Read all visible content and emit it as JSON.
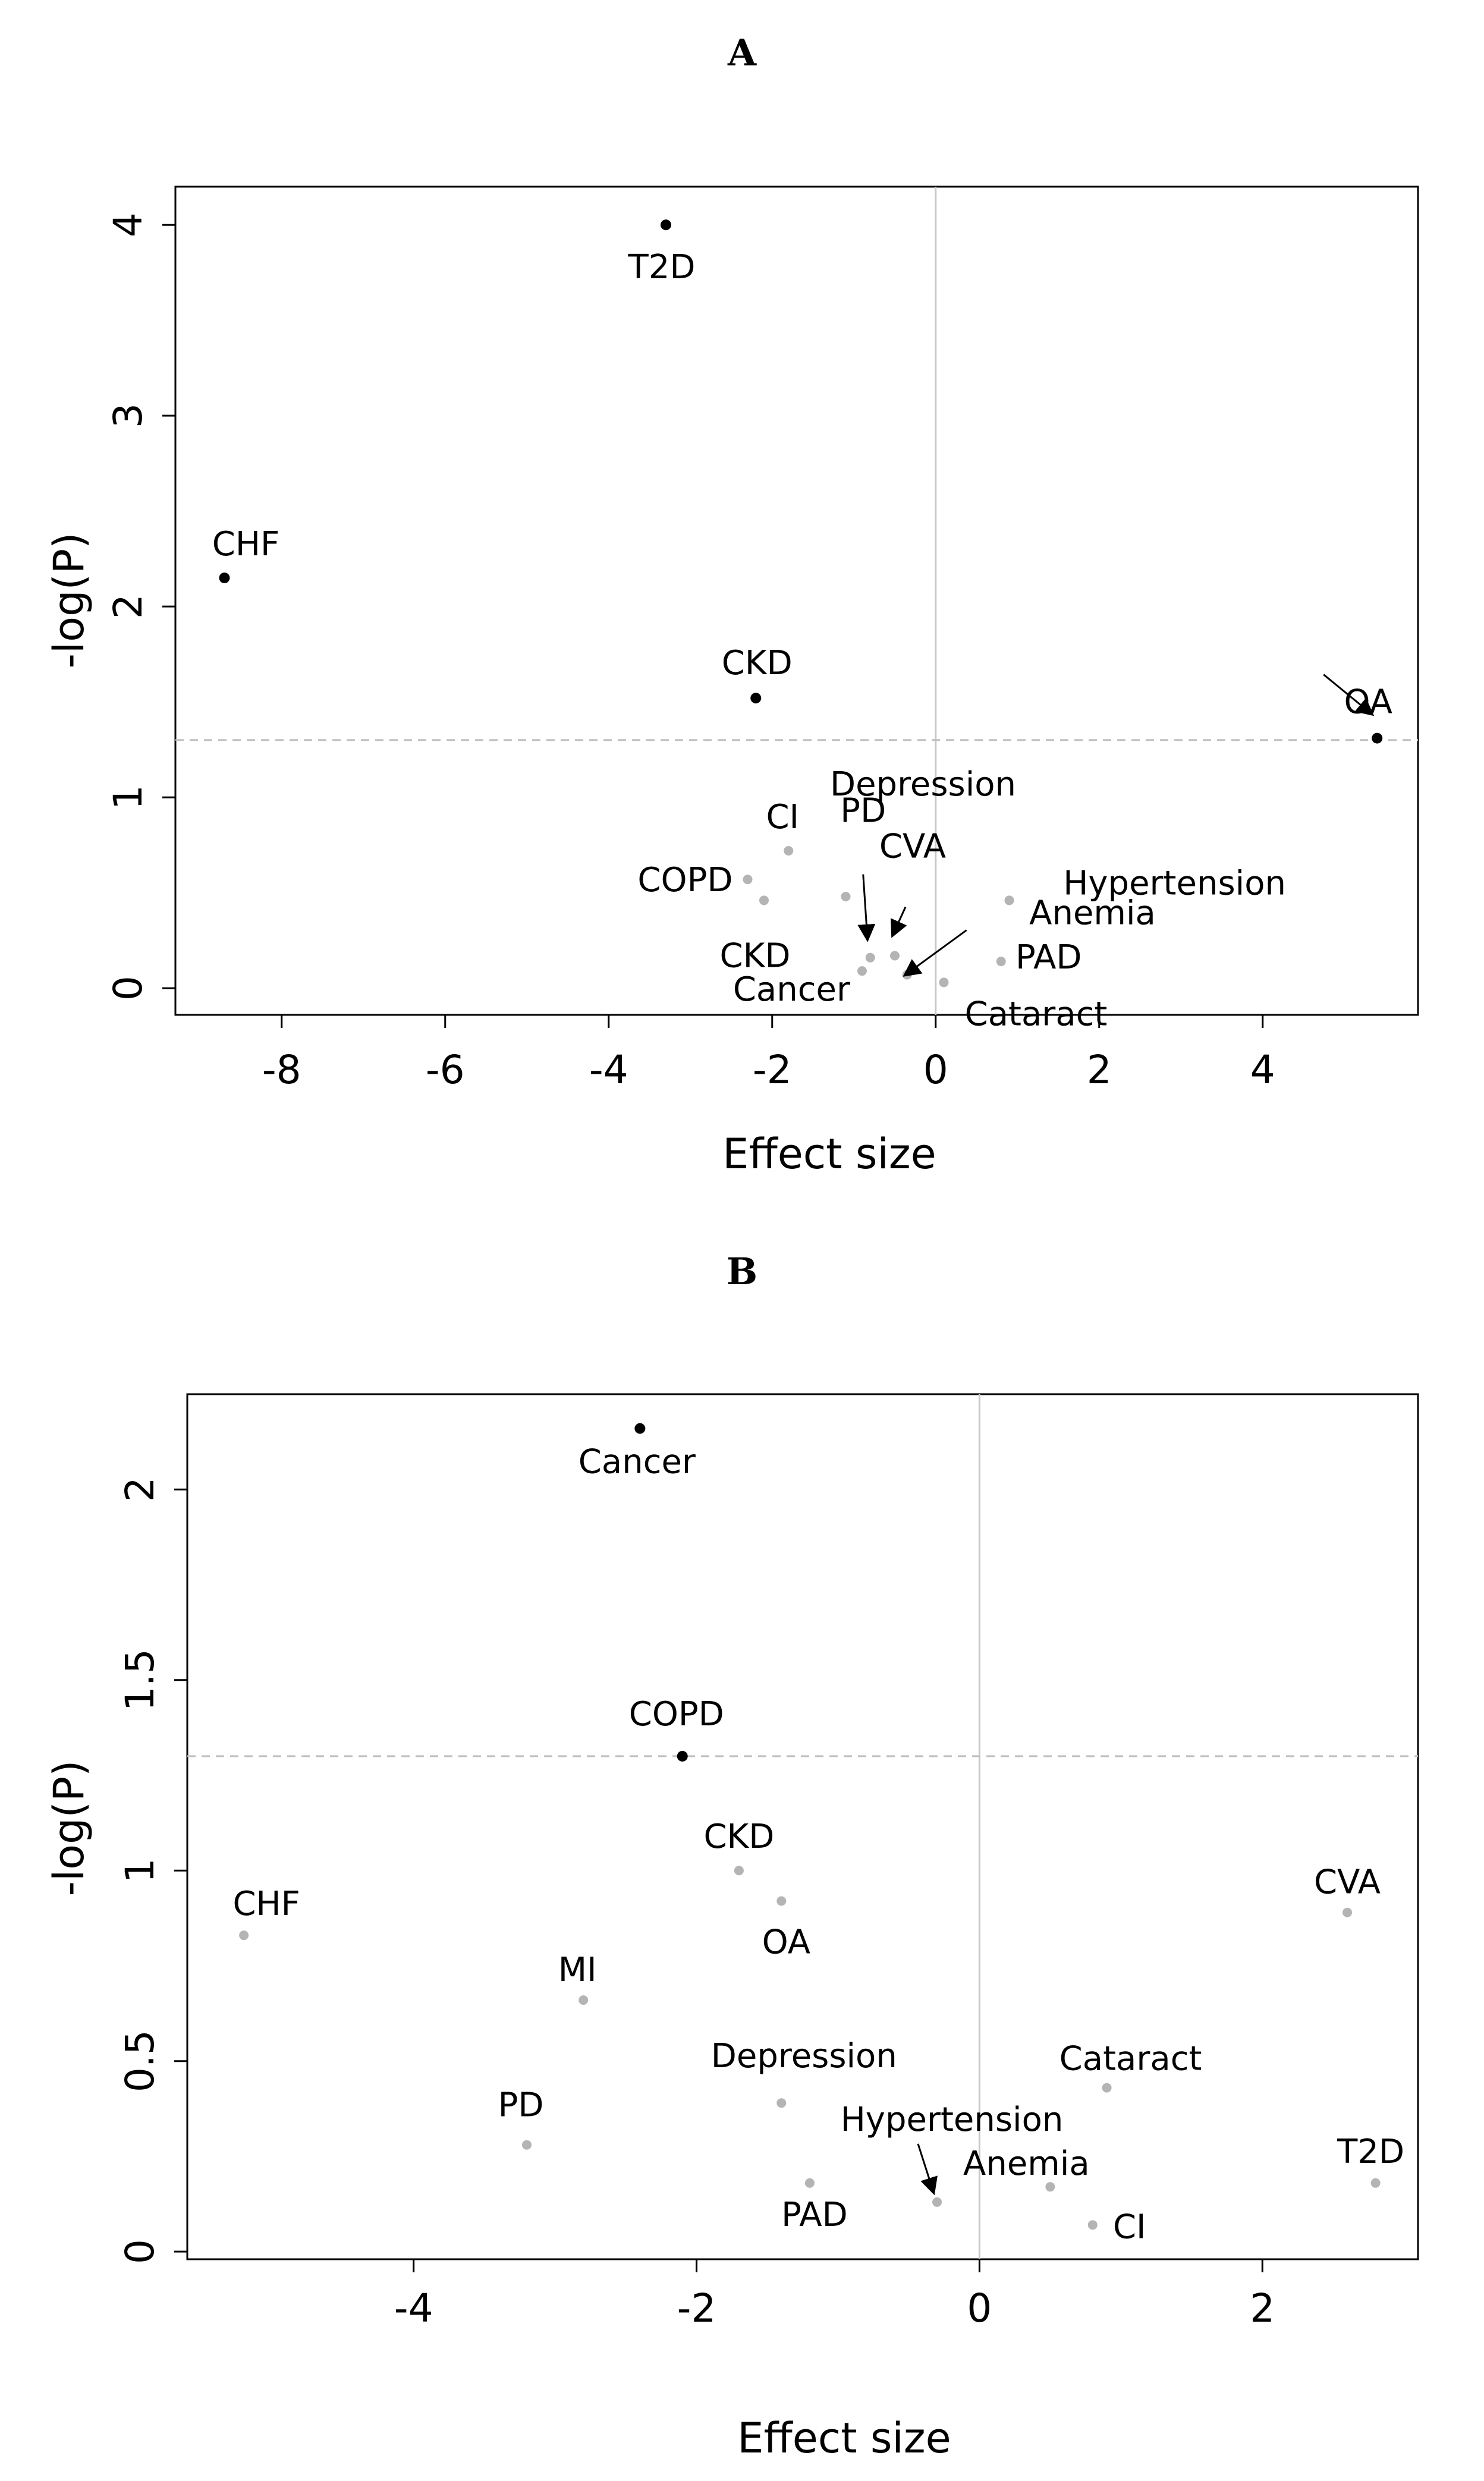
{
  "chart_data": [
    {
      "panel": "A",
      "type": "scatter",
      "xlabel": "Effect size",
      "ylabel": "-log(P)",
      "xlim": [
        -9.3,
        5.9
      ],
      "ylim": [
        -0.14,
        4.2
      ],
      "xticks": [
        -8,
        -6,
        -4,
        -2,
        0,
        2,
        4
      ],
      "yticks": [
        0,
        1,
        2,
        3,
        4
      ],
      "significance_threshold": 1.3,
      "reference_x": 0,
      "points": [
        {
          "label": "T2D",
          "x": -3.3,
          "y": 4.0,
          "significant": true
        },
        {
          "label": "CHF",
          "x": -8.7,
          "y": 2.15,
          "significant": true
        },
        {
          "label": "CKD",
          "x": -2.2,
          "y": 1.52,
          "significant": true
        },
        {
          "label": "OA",
          "x": 5.4,
          "y": 1.31,
          "significant": true
        },
        {
          "label": "CI",
          "x": -1.8,
          "y": 0.72,
          "significant": false
        },
        {
          "label": "COPD",
          "x": -2.3,
          "y": 0.57,
          "significant": false
        },
        {
          "label": "CKD",
          "x": -2.1,
          "y": 0.46,
          "significant": false
        },
        {
          "label": "Depression",
          "x": -1.1,
          "y": 0.48,
          "significant": false
        },
        {
          "label": "PD",
          "x": -0.8,
          "y": 0.16,
          "significant": false
        },
        {
          "label": "CVA",
          "x": -0.5,
          "y": 0.17,
          "significant": false
        },
        {
          "label": "Hypertension",
          "x": -0.35,
          "y": 0.07,
          "significant": false
        },
        {
          "label": "Cancer",
          "x": -0.9,
          "y": 0.09,
          "significant": false
        },
        {
          "label": "Anemia",
          "x": 0.9,
          "y": 0.46,
          "significant": false
        },
        {
          "label": "PAD",
          "x": 0.8,
          "y": 0.14,
          "significant": false
        },
        {
          "label": "Cataract",
          "x": 0.1,
          "y": 0.03,
          "significant": false
        }
      ]
    },
    {
      "panel": "B",
      "type": "scatter",
      "xlabel": "Effect size",
      "ylabel": "-log(P)",
      "xlim": [
        -5.6,
        3.1
      ],
      "ylim": [
        -0.02,
        2.25
      ],
      "xticks": [
        -4,
        -2,
        0,
        2
      ],
      "yticks": [
        0,
        0.5,
        1,
        1.5,
        2
      ],
      "significance_threshold": 1.3,
      "reference_x": 0,
      "points": [
        {
          "label": "Cancer",
          "x": -2.4,
          "y": 2.16,
          "significant": true
        },
        {
          "label": "COPD",
          "x": -2.1,
          "y": 1.3,
          "significant": true
        },
        {
          "label": "CKD",
          "x": -1.7,
          "y": 1.0,
          "significant": false
        },
        {
          "label": "OA",
          "x": -1.4,
          "y": 0.92,
          "significant": false
        },
        {
          "label": "CHF",
          "x": -5.2,
          "y": 0.83,
          "significant": false
        },
        {
          "label": "MI",
          "x": -2.8,
          "y": 0.66,
          "significant": false
        },
        {
          "label": "CVA",
          "x": 2.6,
          "y": 0.89,
          "significant": false
        },
        {
          "label": "Cataract",
          "x": 0.9,
          "y": 0.43,
          "significant": false
        },
        {
          "label": "Depression",
          "x": -1.4,
          "y": 0.39,
          "significant": false
        },
        {
          "label": "PD",
          "x": -3.2,
          "y": 0.28,
          "significant": false
        },
        {
          "label": "Hypertension",
          "x": -0.3,
          "y": 0.13,
          "significant": false
        },
        {
          "label": "PAD",
          "x": -1.2,
          "y": 0.18,
          "significant": false
        },
        {
          "label": "Anemia",
          "x": 0.5,
          "y": 0.17,
          "significant": false
        },
        {
          "label": "CI",
          "x": 0.8,
          "y": 0.07,
          "significant": false
        },
        {
          "label": "T2D",
          "x": 2.8,
          "y": 0.18,
          "significant": false
        }
      ]
    }
  ],
  "colors": {
    "significant": "#000000",
    "non_significant": "#b4b4b4",
    "threshold_line": "#c0c0c0",
    "reference_line": "#c8c8c8",
    "axes": "#000000"
  }
}
